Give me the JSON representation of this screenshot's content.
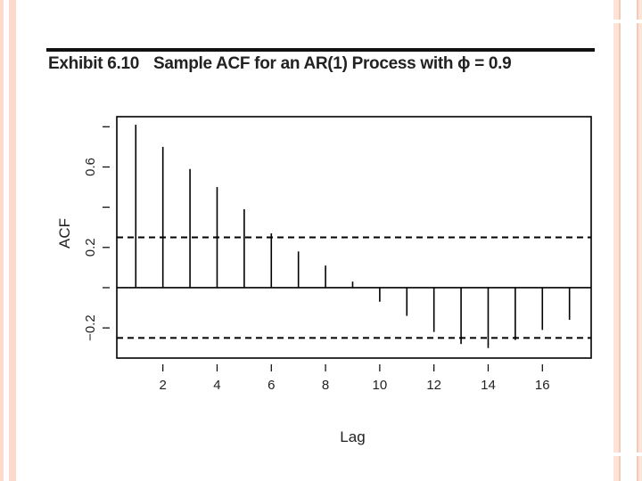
{
  "header": {
    "exhibit_label": "Exhibit 6.10",
    "exhibit_caption": "Sample ACF for an AR(1) Process with ϕ = 0.9"
  },
  "colors": {
    "ink": "#000000",
    "slide_accent": "#fcd9cb"
  },
  "chart_data": {
    "type": "bar",
    "title": "Exhibit 6.10 Sample ACF for an AR(1) Process with ϕ = 0.9",
    "xlabel": "Lag",
    "ylabel": "ACF",
    "xlim": [
      0.3,
      17.8
    ],
    "ylim": [
      -0.35,
      0.85
    ],
    "x_ticks": [
      2,
      4,
      6,
      8,
      10,
      12,
      14,
      16
    ],
    "y_ticks": [
      -0.2,
      0.2,
      0.6
    ],
    "y_minor_ticks": [
      -0.2,
      0.0,
      0.2,
      0.4,
      0.6,
      0.8
    ],
    "x": [
      1,
      2,
      3,
      4,
      5,
      6,
      7,
      8,
      9,
      10,
      11,
      12,
      13,
      14,
      15,
      16,
      17
    ],
    "values": [
      0.81,
      0.7,
      0.59,
      0.5,
      0.39,
      0.27,
      0.18,
      0.11,
      0.03,
      -0.07,
      -0.14,
      -0.22,
      -0.28,
      -0.3,
      -0.26,
      -0.21,
      -0.16
    ],
    "confidence_bound": 0.25,
    "zero_line": true,
    "grid": false
  }
}
